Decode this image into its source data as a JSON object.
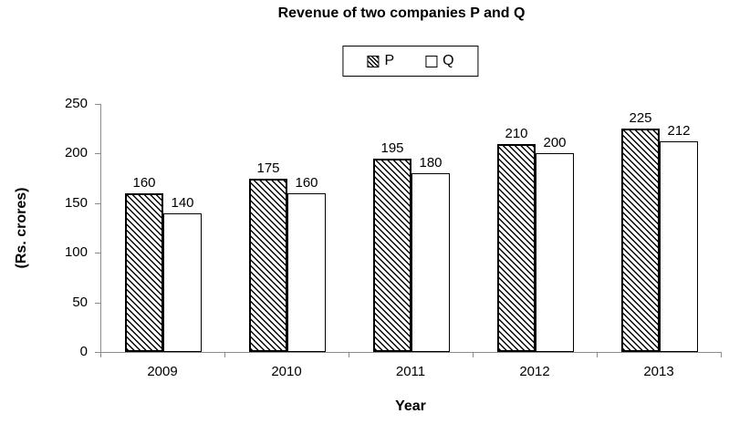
{
  "title": "Revenue of two companies P and Q",
  "legend": {
    "items": [
      {
        "label": "P",
        "swatch": "diagonal-hatch"
      },
      {
        "label": "Q",
        "swatch": "white"
      }
    ]
  },
  "colors": {
    "axis": "#8c8c8c",
    "text": "#000000",
    "bar_border": "#000000",
    "bar_fill_q": "#ffffff",
    "background": "#ffffff"
  },
  "chart_data": {
    "type": "bar",
    "title": "Revenue of two companies P and Q",
    "categories": [
      "2009",
      "2010",
      "2011",
      "2012",
      "2013"
    ],
    "series": [
      {
        "name": "P",
        "pattern": "diagonal-hatch",
        "values": [
          160,
          175,
          195,
          210,
          225
        ]
      },
      {
        "name": "Q",
        "pattern": "solid-white",
        "values": [
          140,
          160,
          180,
          200,
          212
        ]
      }
    ],
    "xlabel": "Year",
    "ylabel": "(Rs. crores)",
    "ylim": [
      0,
      250
    ],
    "yticks": [
      0,
      50,
      100,
      150,
      200,
      250
    ],
    "grid": false,
    "legend_position": "top-center",
    "data_labels": true
  }
}
